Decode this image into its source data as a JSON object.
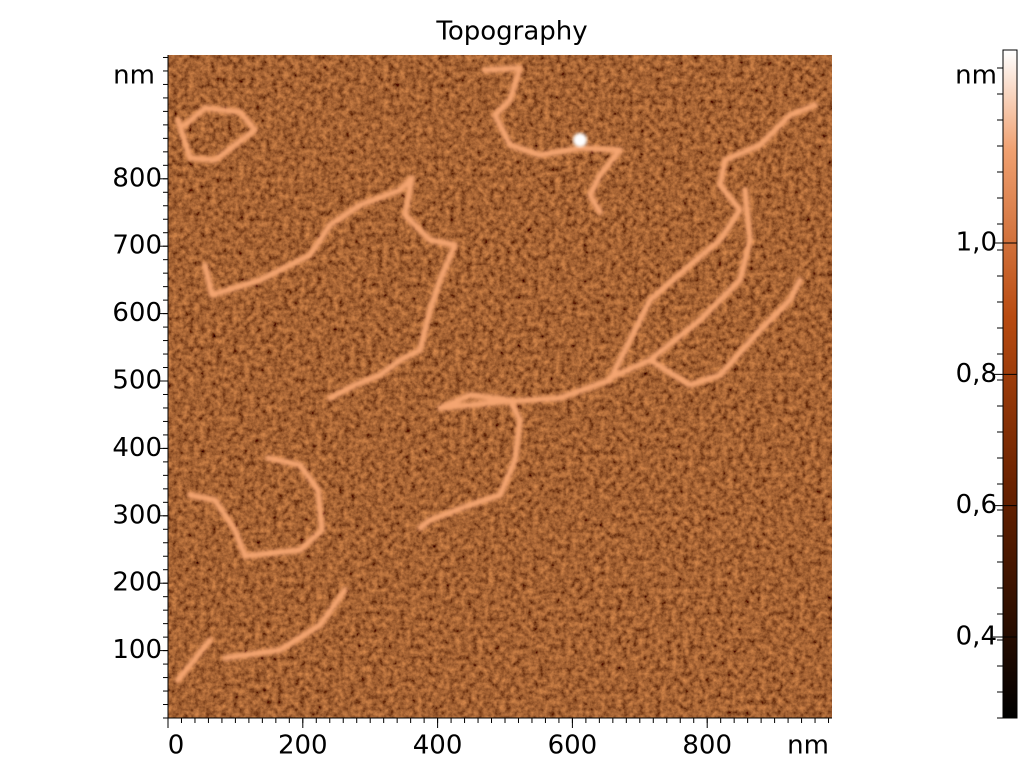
{
  "title": "Topography",
  "x_axis": {
    "unit": "nm",
    "ticks": [
      0,
      200,
      400,
      600,
      800
    ]
  },
  "y_axis": {
    "unit": "nm",
    "ticks": [
      100,
      200,
      300,
      400,
      500,
      600,
      700,
      800
    ]
  },
  "colorbar": {
    "unit": "nm",
    "ticks": [
      {
        "value": 0.4,
        "label": "0,4"
      },
      {
        "value": 0.6,
        "label": "0,6"
      },
      {
        "value": 0.8,
        "label": "0,8"
      },
      {
        "value": 1.0,
        "label": "1,0"
      }
    ]
  }
}
